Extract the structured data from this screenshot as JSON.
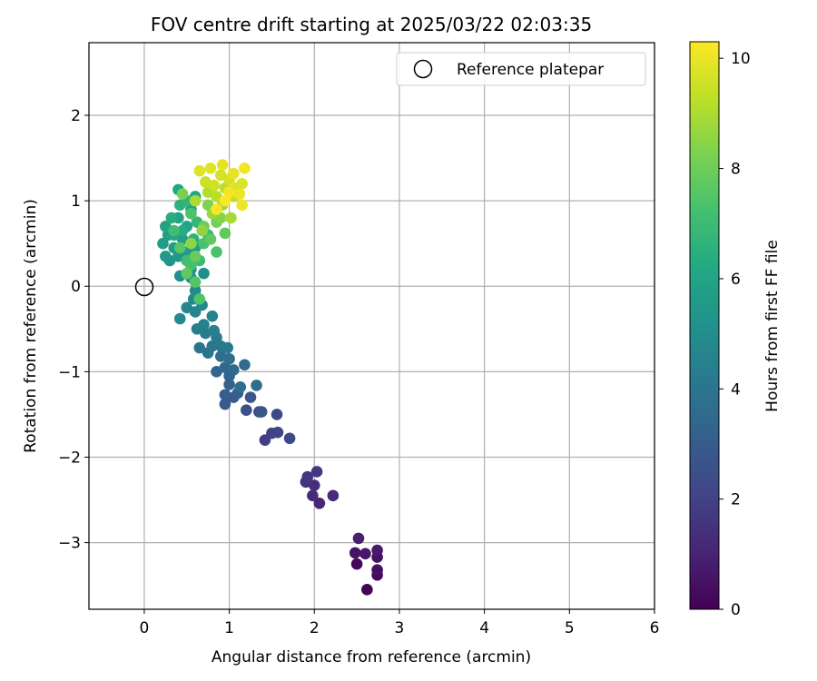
{
  "chart_data": {
    "type": "scatter",
    "title": "FOV centre drift starting at 2025/03/22 02:03:35",
    "xlabel": "Angular distance from reference (arcmin)",
    "ylabel": "Rotation from reference (arcmin)",
    "xlim": [
      -0.65,
      6.0
    ],
    "ylim": [
      -3.78,
      2.85
    ],
    "xticks": [
      0,
      1,
      2,
      3,
      4,
      5,
      6
    ],
    "xtick_labels": [
      "0",
      "1",
      "2",
      "3",
      "4",
      "5",
      "6"
    ],
    "yticks": [
      -3,
      -2,
      -1,
      0,
      1,
      2
    ],
    "ytick_labels": [
      "−3",
      "−2",
      "−1",
      "0",
      "1",
      "2"
    ],
    "grid": true,
    "legend": {
      "placement": "top-right",
      "entries": [
        "Reference platepar"
      ]
    },
    "reference_point": {
      "x": 0,
      "y": 0,
      "label": "Reference platepar",
      "marker": "open-circle"
    },
    "colorbar": {
      "label": "Hours from first FF file",
      "range": [
        0,
        10.3
      ],
      "ticks": [
        0,
        2,
        4,
        6,
        8,
        10
      ],
      "tick_labels": [
        "0",
        "2",
        "4",
        "6",
        "8",
        "10"
      ],
      "colormap": "viridis"
    },
    "points": [
      [
        2.62,
        -3.55,
        0.1
      ],
      [
        2.5,
        -3.25,
        0.2
      ],
      [
        2.74,
        -3.38,
        0.3
      ],
      [
        2.74,
        -3.32,
        0.4
      ],
      [
        2.74,
        -3.17,
        0.5
      ],
      [
        2.48,
        -3.12,
        0.55
      ],
      [
        2.6,
        -3.13,
        0.65
      ],
      [
        2.74,
        -3.09,
        0.75
      ],
      [
        2.52,
        -2.95,
        0.9
      ],
      [
        2.06,
        -2.54,
        1.1
      ],
      [
        1.98,
        -2.45,
        1.2
      ],
      [
        2.22,
        -2.45,
        1.3
      ],
      [
        2.0,
        -2.33,
        1.4
      ],
      [
        1.9,
        -2.29,
        1.5
      ],
      [
        1.92,
        -2.23,
        1.6
      ],
      [
        2.03,
        -2.17,
        1.7
      ],
      [
        1.42,
        -1.8,
        1.9
      ],
      [
        1.5,
        -1.72,
        2.0
      ],
      [
        1.57,
        -1.71,
        2.1
      ],
      [
        1.71,
        -1.78,
        2.2
      ],
      [
        1.56,
        -1.5,
        2.3
      ],
      [
        1.35,
        -1.47,
        2.4
      ],
      [
        1.2,
        -1.45,
        2.5
      ],
      [
        1.38,
        -1.47,
        2.6
      ],
      [
        1.25,
        -1.3,
        2.75
      ],
      [
        0.95,
        -1.38,
        2.85
      ],
      [
        1.05,
        -1.3,
        2.95
      ],
      [
        0.95,
        -1.27,
        3.05
      ],
      [
        1.1,
        -1.25,
        3.15
      ],
      [
        1.0,
        -1.15,
        3.25
      ],
      [
        0.85,
        -1.0,
        3.3
      ],
      [
        1.0,
        -1.05,
        3.4
      ],
      [
        0.95,
        -0.95,
        3.5
      ],
      [
        1.05,
        -0.98,
        3.55
      ],
      [
        1.18,
        -0.92,
        3.6
      ],
      [
        1.32,
        -1.16,
        3.65
      ],
      [
        1.13,
        -1.18,
        3.7
      ],
      [
        0.9,
        -0.82,
        3.75
      ],
      [
        1.0,
        -0.85,
        3.8
      ],
      [
        0.75,
        -0.78,
        3.9
      ],
      [
        0.65,
        -0.72,
        4.0
      ],
      [
        0.8,
        -0.7,
        4.05
      ],
      [
        0.9,
        -0.7,
        4.1
      ],
      [
        0.98,
        -0.72,
        4.15
      ],
      [
        0.85,
        -0.6,
        4.2
      ],
      [
        0.72,
        -0.55,
        4.3
      ],
      [
        0.62,
        -0.5,
        4.35
      ],
      [
        0.82,
        -0.52,
        4.4
      ],
      [
        0.7,
        -0.45,
        4.5
      ],
      [
        0.8,
        -0.35,
        4.55
      ],
      [
        0.6,
        -0.3,
        4.6
      ],
      [
        0.5,
        -0.25,
        4.7
      ],
      [
        0.68,
        -0.22,
        4.75
      ],
      [
        0.58,
        -0.15,
        4.8
      ],
      [
        0.42,
        -0.38,
        4.85
      ],
      [
        0.6,
        -0.05,
        4.9
      ],
      [
        0.55,
        0.1,
        5.0
      ],
      [
        0.42,
        0.12,
        5.05
      ],
      [
        0.7,
        0.15,
        5.1
      ],
      [
        0.55,
        0.2,
        5.15
      ],
      [
        0.3,
        0.3,
        5.3
      ],
      [
        0.4,
        0.35,
        5.4
      ],
      [
        0.25,
        0.35,
        5.5
      ],
      [
        0.5,
        0.4,
        5.55
      ],
      [
        0.35,
        0.45,
        5.6
      ],
      [
        0.22,
        0.5,
        5.65
      ],
      [
        0.45,
        0.55,
        5.7
      ],
      [
        0.28,
        0.6,
        5.75
      ],
      [
        0.6,
        0.45,
        5.8
      ],
      [
        0.25,
        0.7,
        5.85
      ],
      [
        0.5,
        0.7,
        5.9
      ],
      [
        0.4,
        0.8,
        5.95
      ],
      [
        0.55,
        0.9,
        6.0
      ],
      [
        0.6,
        1.05,
        6.05
      ],
      [
        0.4,
        1.13,
        6.1
      ],
      [
        0.35,
        0.6,
        6.2
      ],
      [
        0.45,
        0.65,
        6.3
      ],
      [
        0.32,
        0.8,
        6.4
      ],
      [
        0.58,
        0.55,
        6.5
      ],
      [
        0.42,
        0.95,
        6.6
      ],
      [
        0.5,
        1.0,
        6.7
      ],
      [
        0.62,
        0.75,
        6.8
      ],
      [
        0.75,
        0.6,
        6.9
      ],
      [
        0.65,
        0.3,
        7.0
      ],
      [
        0.5,
        0.3,
        7.05
      ],
      [
        0.35,
        0.65,
        7.1
      ],
      [
        0.55,
        0.25,
        7.2
      ],
      [
        0.7,
        0.5,
        7.3
      ],
      [
        0.85,
        0.4,
        7.35
      ],
      [
        0.55,
        0.85,
        7.4
      ],
      [
        0.65,
        -0.15,
        7.45
      ],
      [
        0.6,
        0.05,
        7.5
      ],
      [
        0.42,
        0.45,
        7.6
      ],
      [
        0.78,
        0.55,
        7.7
      ],
      [
        0.5,
        0.15,
        7.75
      ],
      [
        0.95,
        0.62,
        7.8
      ],
      [
        0.6,
        0.35,
        7.9
      ],
      [
        0.7,
        0.7,
        8.0
      ],
      [
        0.85,
        0.75,
        8.1
      ],
      [
        0.45,
        1.08,
        8.2
      ],
      [
        0.75,
        0.95,
        8.3
      ],
      [
        0.9,
        0.8,
        8.4
      ],
      [
        0.55,
        0.5,
        8.5
      ],
      [
        0.68,
        0.65,
        8.6
      ],
      [
        0.8,
        0.85,
        8.7
      ],
      [
        0.92,
        0.95,
        8.8
      ],
      [
        1.02,
        0.8,
        8.9
      ],
      [
        0.6,
        1.0,
        9.0
      ],
      [
        0.75,
        1.1,
        9.1
      ],
      [
        0.85,
        1.05,
        9.2
      ],
      [
        0.95,
        1.15,
        9.3
      ],
      [
        1.05,
        1.05,
        9.4
      ],
      [
        0.72,
        1.22,
        9.5
      ],
      [
        0.82,
        1.18,
        9.55
      ],
      [
        0.9,
        1.3,
        9.6
      ],
      [
        1.0,
        1.25,
        9.65
      ],
      [
        1.08,
        1.15,
        9.7
      ],
      [
        1.15,
        1.2,
        9.75
      ],
      [
        0.65,
        1.35,
        9.8
      ],
      [
        0.78,
        1.38,
        9.85
      ],
      [
        0.92,
        1.42,
        9.9
      ],
      [
        1.05,
        1.32,
        9.95
      ],
      [
        1.12,
        1.08,
        10.0
      ],
      [
        1.15,
        0.95,
        10.05
      ],
      [
        1.18,
        1.38,
        10.1
      ],
      [
        1.0,
        1.1,
        10.15
      ],
      [
        0.85,
        0.9,
        10.2
      ],
      [
        0.95,
        1.0,
        10.25
      ]
    ]
  }
}
